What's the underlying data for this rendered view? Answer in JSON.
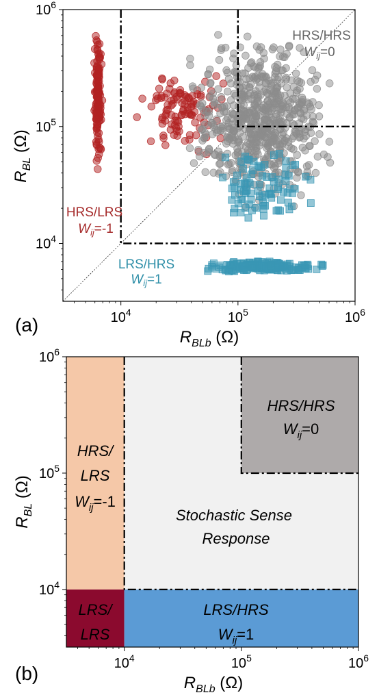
{
  "chart_data": [
    {
      "panel": "(a)",
      "type": "scatter",
      "xlabel": {
        "main": "R",
        "sub": "BLb",
        "unit": " (Ω)"
      },
      "ylabel": {
        "main": "R",
        "sub": "BL",
        "unit": " (Ω)"
      },
      "xscale": "log",
      "yscale": "log",
      "xlim": [
        3200,
        1000000
      ],
      "ylim": [
        3200,
        1000000
      ],
      "x_ticks": [
        {
          "base": "10",
          "exp": "4"
        },
        {
          "base": "10",
          "exp": "5"
        },
        {
          "base": "10",
          "exp": "6"
        }
      ],
      "y_ticks": [
        {
          "base": "10",
          "exp": "4"
        },
        {
          "base": "10",
          "exp": "5"
        },
        {
          "base": "10",
          "exp": "6"
        }
      ],
      "diagonal": "y = x (dotted)",
      "boundaries": [
        {
          "style": "dash-dot",
          "points": [
            [
              10000,
              1000000
            ],
            [
              10000,
              10000
            ],
            [
              1000000,
              10000
            ]
          ]
        },
        {
          "style": "dash-dot",
          "points": [
            [
              100000,
              1000000
            ],
            [
              100000,
              100000
            ],
            [
              1000000,
              100000
            ]
          ]
        }
      ],
      "annotations": [
        {
          "text": "HRS/HRS",
          "w_main": "W",
          "w_sub": "ij",
          "w_val": "=0",
          "color": "#666666"
        },
        {
          "text": "HRS/LRS",
          "w_main": "W",
          "w_sub": "ij",
          "w_val": "=-1",
          "color": "#a52a2a"
        },
        {
          "text": "LRS/HRS",
          "w_main": "W",
          "w_sub": "ij",
          "w_val": "=1",
          "color": "#2f8fa8"
        }
      ],
      "series": [
        {
          "state": "HRS/LRS",
          "marker": "circle",
          "color": "#b22222",
          "clusters": [
            {
              "x_range": [
                5800,
                7000
              ],
              "y_range": [
                40000,
                800000
              ],
              "count": 140
            },
            {
              "x_range": [
                12000,
                90000
              ],
              "y_range": [
                50000,
                400000
              ],
              "count": 110
            }
          ]
        },
        {
          "state": "HRS/HRS",
          "marker": "circle",
          "color": "#8c8c8c",
          "clusters": [
            {
              "x_range": [
                30000,
                800000
              ],
              "y_range": [
                15000,
                800000
              ],
              "count": 650
            }
          ]
        },
        {
          "state": "LRS/HRS",
          "marker": "square",
          "color": "#3a97b5",
          "clusters": [
            {
              "x_range": [
                40000,
                700000
              ],
              "y_range": [
                5600,
                7200
              ],
              "count": 200
            },
            {
              "x_range": [
                50000,
                500000
              ],
              "y_range": [
                12000,
                90000
              ],
              "count": 90
            }
          ]
        }
      ]
    },
    {
      "panel": "(b)",
      "type": "region-map",
      "xlabel": {
        "main": "R",
        "sub": "BLb",
        "unit": " (Ω)"
      },
      "ylabel": {
        "main": "R",
        "sub": "BL",
        "unit": " (Ω)"
      },
      "xscale": "log",
      "yscale": "log",
      "xlim": [
        3200,
        1000000
      ],
      "ylim": [
        3200,
        1000000
      ],
      "x_ticks": [
        {
          "base": "10",
          "exp": "4"
        },
        {
          "base": "10",
          "exp": "5"
        },
        {
          "base": "10",
          "exp": "6"
        }
      ],
      "y_ticks": [
        {
          "base": "10",
          "exp": "4"
        },
        {
          "base": "10",
          "exp": "5"
        },
        {
          "base": "10",
          "exp": "6"
        }
      ],
      "regions": [
        {
          "name": "HRS/LRS",
          "x": [
            3200,
            10000
          ],
          "y": [
            10000,
            1000000
          ],
          "color": "#f5c8a8",
          "lines": [
            "HRS/",
            "LRS"
          ],
          "w_main": "W",
          "w_sub": "ij",
          "w_val": "=-1"
        },
        {
          "name": "LRS/LRS",
          "x": [
            3200,
            10000
          ],
          "y": [
            3200,
            10000
          ],
          "color": "#8b0a2e",
          "lines": [
            "LRS/",
            "LRS"
          ]
        },
        {
          "name": "LRS/HRS",
          "x": [
            10000,
            1000000
          ],
          "y": [
            3200,
            10000
          ],
          "color": "#5b9bd5",
          "lines": [
            "LRS/HRS"
          ],
          "w_main": "W",
          "w_sub": "ij",
          "w_val": "=1"
        },
        {
          "name": "Stochastic",
          "x": [
            10000,
            1000000
          ],
          "y": [
            10000,
            1000000
          ],
          "color": "#f1f1f1",
          "lines": [
            "Stochastic Sense",
            "Response"
          ]
        },
        {
          "name": "HRS/HRS",
          "x": [
            100000,
            1000000
          ],
          "y": [
            100000,
            1000000
          ],
          "color": "#aeaaaa",
          "lines": [
            "HRS/HRS"
          ],
          "w_main": "W",
          "w_sub": "ij",
          "w_val": "=0"
        }
      ]
    }
  ]
}
